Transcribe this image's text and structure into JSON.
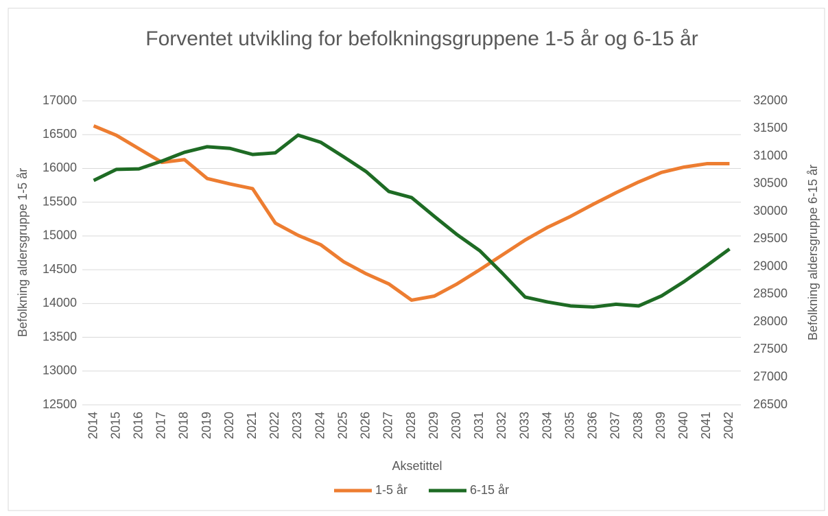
{
  "chart_data": {
    "type": "line",
    "title": "Forventet utvikling for befolkningsgruppene 1-5 år og 6-15 år",
    "x_label": "Aksetittel",
    "y_label": "Befolkning aldersgruppe 1-5 år",
    "y2_label": "Befolkning aldersgruppe 6-15 år",
    "categories": [
      "2014",
      "2015",
      "2016",
      "2017",
      "2018",
      "2019",
      "2020",
      "2021",
      "2022",
      "2023",
      "2024",
      "2025",
      "2026",
      "2027",
      "2028",
      "2029",
      "2030",
      "2031",
      "2032",
      "2033",
      "2034",
      "2035",
      "2036",
      "2037",
      "2038",
      "2039",
      "2040",
      "2041",
      "2042"
    ],
    "series": [
      {
        "name": "1-5 år",
        "color": "#ed7d31",
        "axis": "y",
        "values": [
          16630,
          16490,
          16290,
          16090,
          16130,
          15850,
          15770,
          15700,
          15190,
          15010,
          14870,
          14620,
          14440,
          14290,
          14050,
          14110,
          14290,
          14500,
          14720,
          14940,
          15130,
          15290,
          15470,
          15640,
          15800,
          15940,
          16020,
          16070,
          16070
        ]
      },
      {
        "name": "6-15 år",
        "color": "#1e6b24",
        "axis": "y2",
        "values": [
          30560,
          30760,
          30770,
          30910,
          31070,
          31170,
          31140,
          31030,
          31060,
          31380,
          31250,
          30990,
          30720,
          30360,
          30250,
          29910,
          29580,
          29290,
          28880,
          28450,
          28360,
          28290,
          28270,
          28320,
          28290,
          28470,
          28730,
          29020,
          29320
        ]
      }
    ],
    "ylim": [
      12500,
      17000
    ],
    "yticks": [
      12500,
      13000,
      13500,
      14000,
      14500,
      15000,
      15500,
      16000,
      16500,
      17000
    ],
    "y2lim": [
      26500,
      32000
    ],
    "y2ticks": [
      26500,
      27000,
      27500,
      28000,
      28500,
      29000,
      29500,
      30000,
      30500,
      31000,
      31500,
      32000
    ],
    "grid": true,
    "legend": "bottom"
  }
}
